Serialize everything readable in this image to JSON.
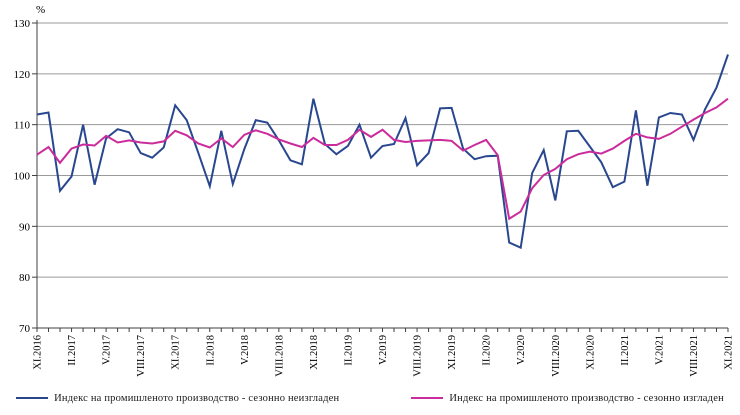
{
  "chart": {
    "percent_label": "%",
    "y_tick_labels": [
      "130",
      "120",
      "110",
      "100",
      "90",
      "80",
      "70"
    ],
    "x_tick_labels": [
      "XI.2016",
      "II.2017",
      "V.2017",
      "VIII.2017",
      "XI.2017",
      "II.2018",
      "V.2018",
      "VIII.2018",
      "XI.2018",
      "II.2019",
      "V.2019",
      "VIII.2019",
      "XI.2019",
      "II.2020",
      "V.2020",
      "VIII.2020",
      "XI.2020",
      "II.2021",
      "V.2021",
      "VIII.2021",
      "XI.2021"
    ]
  },
  "chart_data": {
    "type": "line",
    "title": "",
    "ylabel": "%",
    "ylim": [
      70,
      130
    ],
    "y_tick_step": 10,
    "grid": true,
    "legend_position": "bottom",
    "n_points": 61,
    "x_label_every": 3,
    "x_tick_labels": [
      "XI.2016",
      "II.2017",
      "V.2017",
      "VIII.2017",
      "XI.2017",
      "II.2018",
      "V.2018",
      "VIII.2018",
      "XI.2018",
      "II.2019",
      "V.2019",
      "VIII.2019",
      "XI.2019",
      "II.2020",
      "V.2020",
      "VIII.2020",
      "XI.2020",
      "II.2021",
      "V.2021",
      "VIII.2021",
      "XI.2021"
    ],
    "series": [
      {
        "name": "Индекс на промишленото  производство - сезонно  неизгладен",
        "color": "#29478F",
        "values": [
          112.0,
          112.4,
          97.0,
          99.8,
          110.0,
          98.2,
          107.3,
          109.1,
          108.5,
          104.4,
          103.5,
          105.5,
          113.8,
          110.9,
          104.5,
          97.9,
          108.8,
          98.3,
          105.2,
          110.9,
          110.4,
          106.9,
          103.0,
          102.2,
          115.1,
          106.2,
          104.2,
          105.8,
          110.0,
          103.5,
          105.8,
          106.2,
          111.3,
          102.0,
          104.4,
          113.2,
          113.3,
          105.3,
          103.2,
          103.8,
          103.9,
          86.8,
          85.8,
          100.5,
          105.0,
          95.1,
          108.7,
          108.8,
          105.7,
          102.6,
          97.7,
          98.8,
          112.8,
          98.0,
          111.4,
          112.3,
          112.0,
          107.0,
          113.0,
          117.3,
          123.8
        ]
      },
      {
        "name": "Индекс на промишленото  производство - сезонно изгладен",
        "color": "#CB2C9C",
        "values": [
          104.1,
          105.6,
          102.5,
          105.3,
          106.1,
          105.9,
          107.8,
          106.5,
          106.9,
          106.5,
          106.3,
          106.7,
          108.8,
          107.9,
          106.3,
          105.5,
          107.3,
          105.6,
          108.0,
          108.9,
          108.2,
          107.1,
          106.3,
          105.6,
          107.4,
          106.0,
          106.0,
          107.0,
          109.0,
          107.6,
          109.0,
          107.0,
          106.6,
          106.8,
          106.9,
          107.0,
          106.8,
          104.9,
          106.0,
          107.0,
          104.0,
          91.5,
          92.9,
          97.5,
          100.1,
          101.3,
          103.2,
          104.2,
          104.7,
          104.3,
          105.3,
          106.8,
          108.2,
          107.5,
          107.2,
          108.2,
          109.6,
          111.0,
          112.3,
          113.4,
          115.1
        ]
      }
    ],
    "style": {
      "grid_color": "#9a9a9a",
      "axis_color": "#404040",
      "line_width": 2
    }
  }
}
